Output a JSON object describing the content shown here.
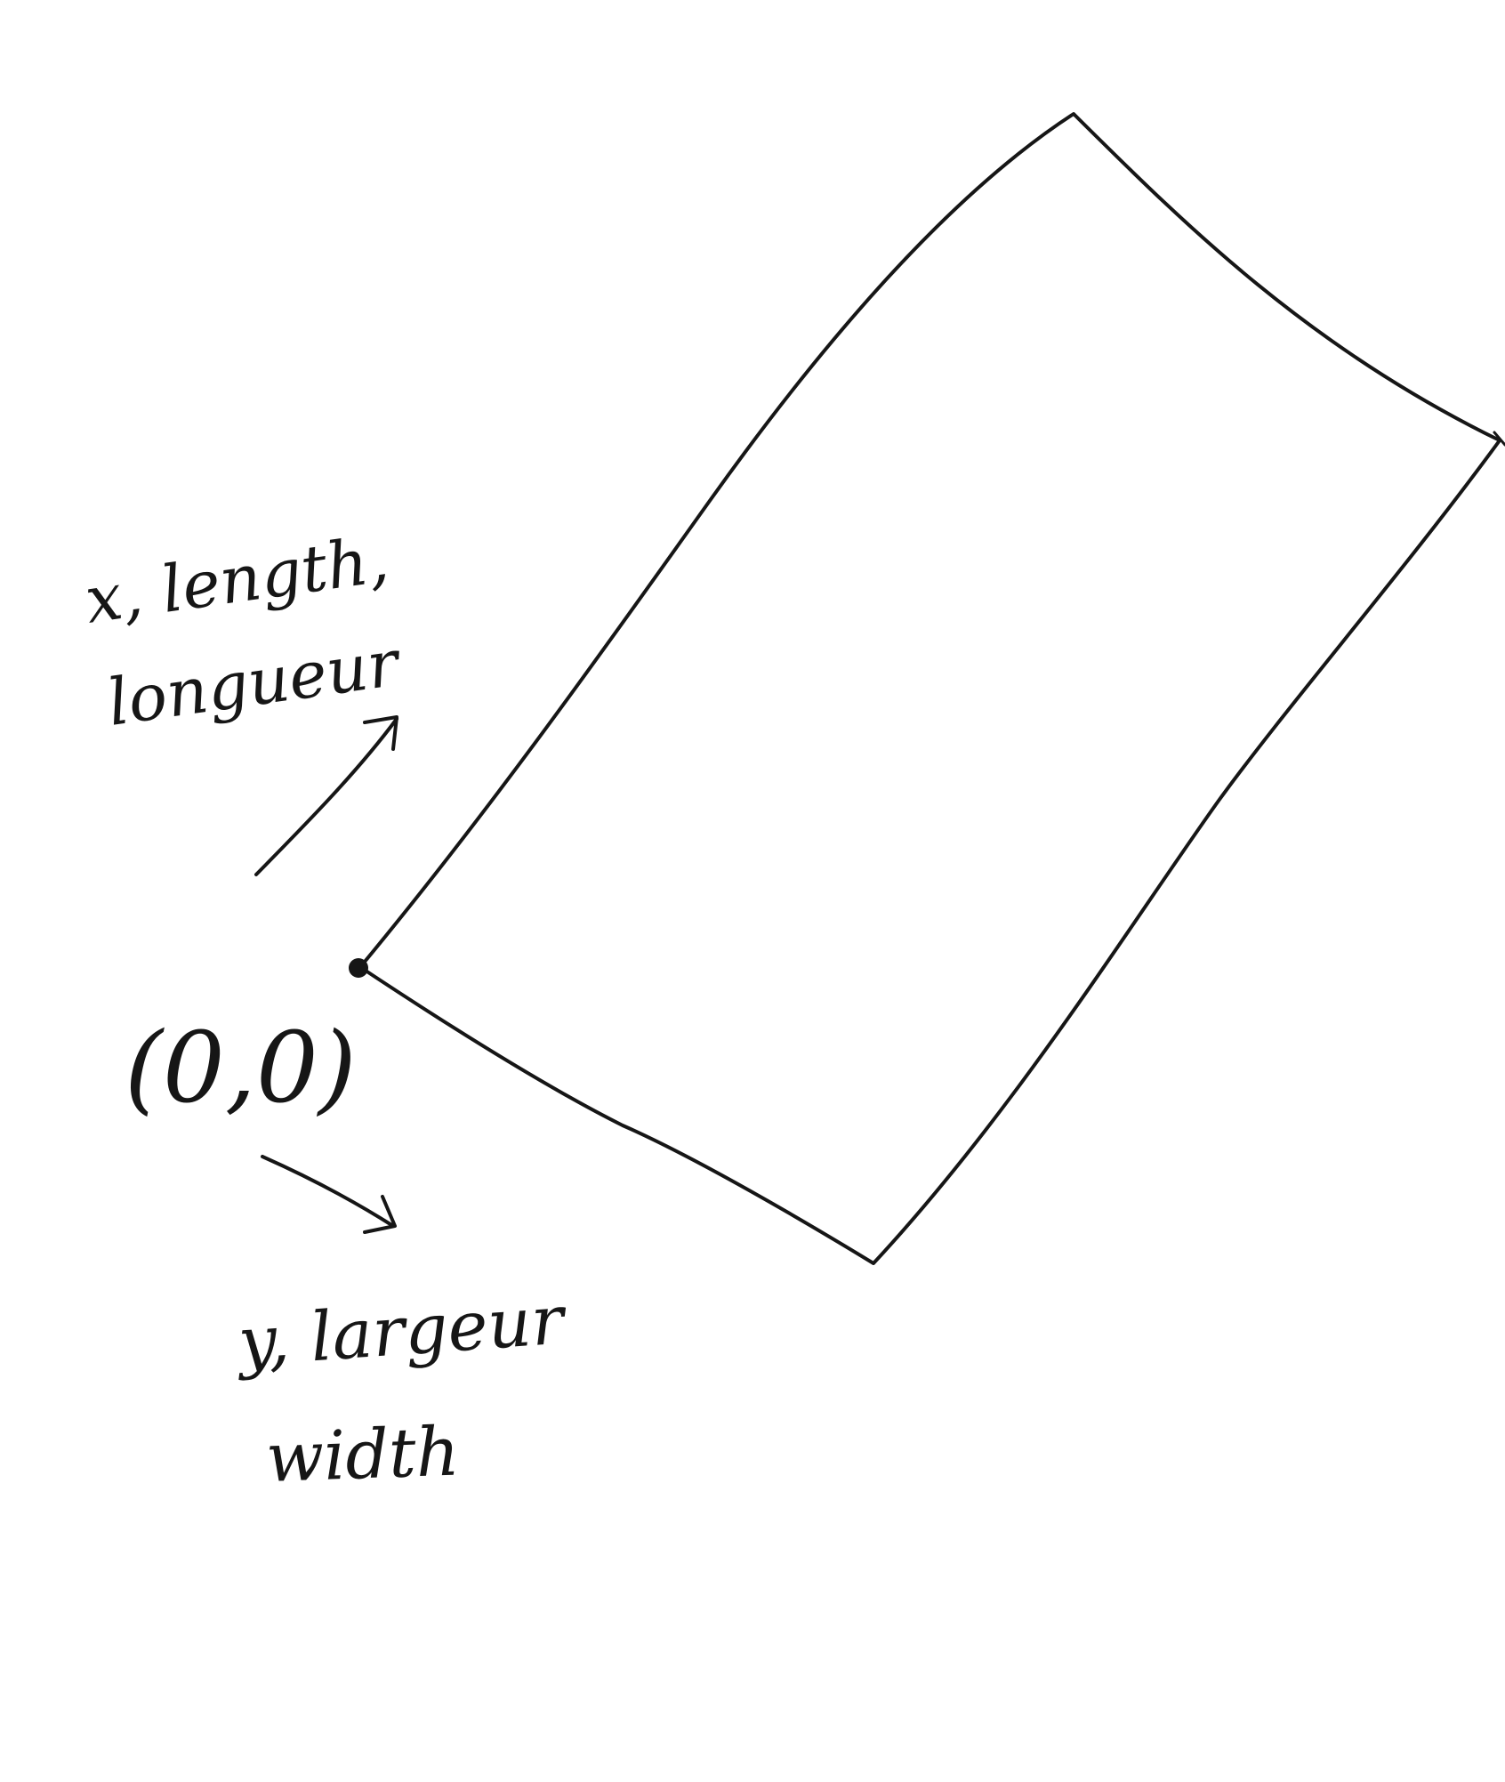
{
  "diagram": {
    "x_axis_label_line1": "x, length,",
    "x_axis_label_line2": "longueur",
    "origin_label": "(0,0)",
    "y_axis_label_line1": "y, largeur",
    "y_axis_label_line2": "width"
  },
  "colors": {
    "ink": "#161616",
    "paper": "#ffffff"
  }
}
